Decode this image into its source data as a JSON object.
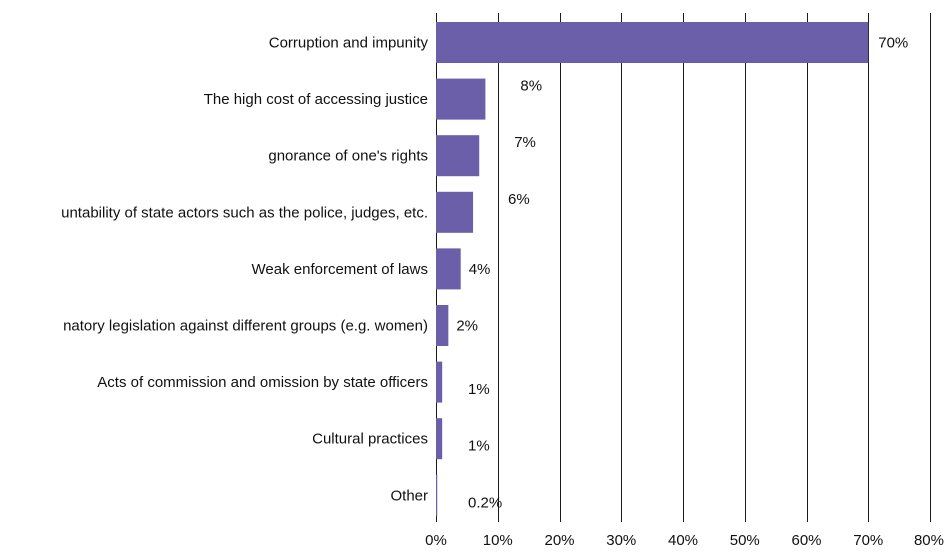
{
  "chart_data": {
    "type": "bar",
    "orientation": "horizontal",
    "categories": [
      "Corruption and impunity",
      "The high cost of accessing justice",
      "gnorance of one's rights",
      "untability of state actors such as the police, judges, etc.",
      "Weak enforcement of laws",
      "natory legislation against different groups (e.g. women)",
      "Acts of commission and omission by state officers",
      "Cultural practices",
      "Other"
    ],
    "values": [
      70,
      8,
      7,
      6,
      4,
      2,
      1,
      1,
      0.2
    ],
    "value_labels": [
      "70%",
      "8%",
      "7%",
      "6%",
      "4%",
      "2%",
      "1%",
      "1%",
      "0.2%"
    ],
    "xlim": [
      0,
      80
    ],
    "x_ticks": [
      0,
      10,
      20,
      30,
      40,
      50,
      60,
      70,
      80
    ],
    "x_tick_labels": [
      "0%",
      "10%",
      "20%",
      "30%",
      "40%",
      "50%",
      "60%",
      "70%",
      "80%"
    ],
    "grid": "vertical",
    "bar_color": "#6a5fa8"
  }
}
